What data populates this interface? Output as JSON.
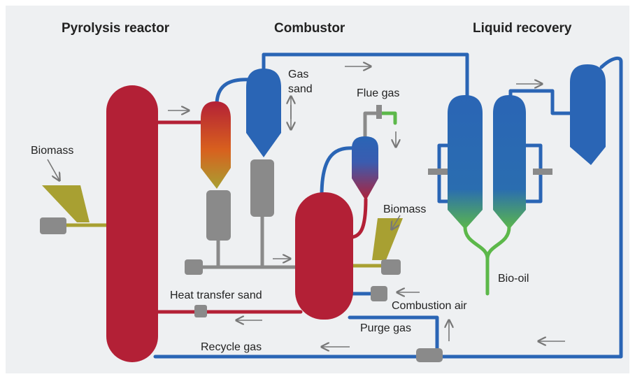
{
  "headers": [
    "Pyrolysis reactor",
    "Combustor",
    "Liquid recovery"
  ],
  "labels": {
    "biomass_left": "Biomass",
    "gas_sand": [
      "Gas",
      "sand"
    ],
    "flue_gas": "Flue gas",
    "biomass_right": "Biomass",
    "heat_transfer_sand": "Heat transfer sand",
    "combustion_air": "Combustion air",
    "purge_gas": "Purge gas",
    "recycle_gas": "Recycle gas",
    "bio_oil": "Bio-oil"
  }
}
